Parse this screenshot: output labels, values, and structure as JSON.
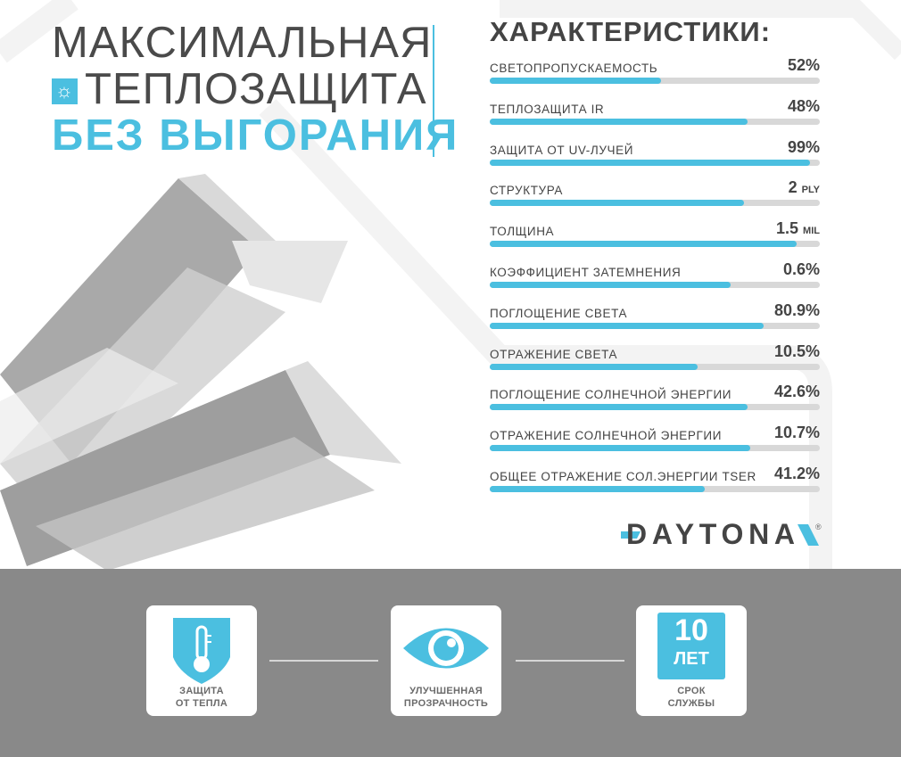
{
  "headline": {
    "line1": "МАКСИМАЛЬНАЯ",
    "line2": "ТЕПЛОЗАЩИТА",
    "line3": "БЕЗ ВЫГОРАНИЯ",
    "icon": "sun-icon"
  },
  "specs": {
    "title": "ХАРАКТЕРИСТИКИ:",
    "items": [
      {
        "label": "СВЕТОПРОПУСКАЕМОСТЬ",
        "value": "52%",
        "unit": "",
        "fill": 0.52
      },
      {
        "label": "ТЕПЛОЗАЩИТА IR",
        "value": "48%",
        "unit": "",
        "fill": 0.78
      },
      {
        "label": "ЗАЩИТА ОТ UV-ЛУЧЕЙ",
        "value": "99%",
        "unit": "",
        "fill": 0.97
      },
      {
        "label": "СТРУКТУРА",
        "value": "2",
        "unit": "PLY",
        "fill": 0.77
      },
      {
        "label": "ТОЛЩИНА",
        "value": "1.5",
        "unit": "MIL",
        "fill": 0.93
      },
      {
        "label": "КОЭФФИЦИЕНТ ЗАТЕМНЕНИЯ",
        "value": "0.6%",
        "unit": "",
        "fill": 0.73
      },
      {
        "label": "ПОГЛОЩЕНИЕ СВЕТА",
        "value": "80.9%",
        "unit": "",
        "fill": 0.83
      },
      {
        "label": "ОТРАЖЕНИЕ СВЕТА",
        "value": "10.5%",
        "unit": "",
        "fill": 0.63
      },
      {
        "label": "ПОГЛОЩЕНИЕ СОЛНЕЧНОЙ ЭНЕРГИИ",
        "value": "42.6%",
        "unit": "",
        "fill": 0.78
      },
      {
        "label": "ОТРАЖЕНИЕ СОЛНЕЧНОЙ ЭНЕРГИИ",
        "value": "10.7%",
        "unit": "",
        "fill": 0.79
      },
      {
        "label": "ОБЩЕЕ ОТРАЖЕНИЕ СОЛ.ЭНЕРГИИ TSER",
        "value": "41.2%",
        "unit": "",
        "fill": 0.65
      }
    ]
  },
  "brand": {
    "name": "DAYTONA",
    "mark": "®"
  },
  "features": [
    {
      "line1": "ЗАЩИТА",
      "line2": "ОТ ТЕПЛА",
      "icon": "thermometer-shield-icon"
    },
    {
      "line1": "УЛУЧШЕННАЯ",
      "line2": "ПРОЗРАЧНОСТЬ",
      "icon": "eye-icon"
    },
    {
      "line1": "СРОК",
      "line2": "СЛУЖБЫ",
      "icon": "years-badge-icon",
      "badge_number": "10",
      "badge_unit": "ЛЕТ"
    }
  ],
  "colors": {
    "accent": "#4bbfe0",
    "text": "#444444",
    "band": "#898989",
    "track": "#d8d8d8"
  }
}
